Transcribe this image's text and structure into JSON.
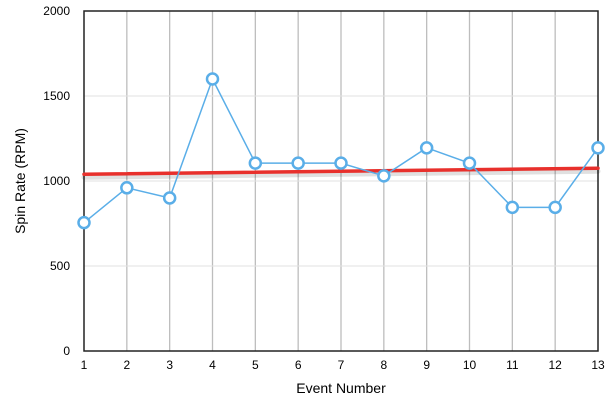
{
  "chart_data": {
    "type": "line",
    "xlabel": "Event Number",
    "ylabel": "Spin Rate (RPM)",
    "x": [
      1,
      2,
      3,
      4,
      5,
      6,
      7,
      8,
      9,
      10,
      11,
      12,
      13
    ],
    "xlim": [
      1,
      13
    ],
    "ylim": [
      0,
      2000
    ],
    "y_ticks": [
      0,
      500,
      1000,
      1500,
      2000
    ],
    "grid": {
      "vertical_lines": true,
      "horizontal_lines": true
    },
    "legend": "none",
    "series": [
      {
        "values": [
          755,
          960,
          900,
          1600,
          1105,
          1105,
          1105,
          1030,
          1195,
          1105,
          845,
          845,
          1195
        ],
        "color": "#5aaee8",
        "marker": "open-circle"
      }
    ],
    "trendline": {
      "start": 1040,
      "end": 1075,
      "color": "#e8302c"
    }
  }
}
